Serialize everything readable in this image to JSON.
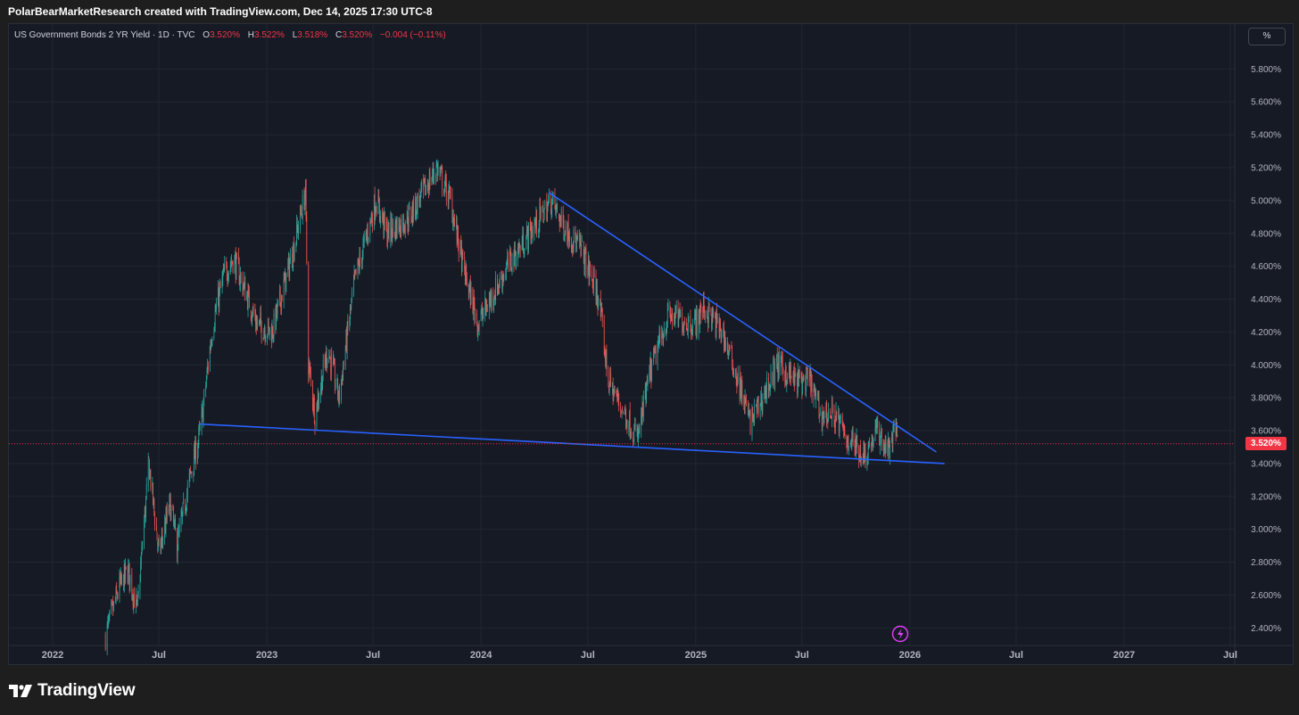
{
  "header": {
    "credit": "PolarBearMarketResearch created with TradingView.com, Dec 14, 2025 17:30 UTC-8"
  },
  "legend": {
    "symbol": "US Government Bonds 2 YR Yield · 1D · TVC",
    "open_label": "O",
    "open_value": "3.520%",
    "high_label": "H",
    "high_value": "3.522%",
    "low_label": "L",
    "low_value": "3.518%",
    "close_label": "C",
    "close_value": "3.520%",
    "change": "−0.004 (−0.11%)"
  },
  "controls": {
    "unit_button": "%",
    "flash_icon": "lightning-icon"
  },
  "price_axis": {
    "ticks": [
      "5.800%",
      "5.600%",
      "5.400%",
      "5.200%",
      "5.000%",
      "4.800%",
      "4.600%",
      "4.400%",
      "4.200%",
      "4.000%",
      "3.800%",
      "3.600%",
      "3.400%",
      "3.200%",
      "3.000%",
      "2.800%",
      "2.600%",
      "2.400%"
    ],
    "last_price": "3.520%"
  },
  "time_axis": {
    "ticks": [
      "2022",
      "Jul",
      "2023",
      "Jul",
      "2024",
      "Jul",
      "2025",
      "Jul",
      "2026",
      "Jul",
      "2027",
      "Jul"
    ]
  },
  "footer": {
    "brand": "TradingView"
  },
  "colors": {
    "background": "#161a25",
    "up": "#26a69a",
    "down": "#ef5350",
    "trendline": "#2962ff",
    "price_line": "#f23645"
  },
  "chart_data": {
    "type": "candlestick",
    "title": "US Government Bonds 2 YR Yield · 1D · TVC",
    "ylim": [
      2.3,
      5.95
    ],
    "y_unit": "%",
    "last": 3.52,
    "path_points": [
      {
        "date": "2022-04-01",
        "value": 2.35
      },
      {
        "date": "2022-04-25",
        "value": 2.65
      },
      {
        "date": "2022-05-10",
        "value": 2.75
      },
      {
        "date": "2022-05-25",
        "value": 2.5
      },
      {
        "date": "2022-06-14",
        "value": 3.4
      },
      {
        "date": "2022-07-01",
        "value": 2.85
      },
      {
        "date": "2022-07-20",
        "value": 3.15
      },
      {
        "date": "2022-08-01",
        "value": 2.9
      },
      {
        "date": "2022-08-25",
        "value": 3.35
      },
      {
        "date": "2022-09-10",
        "value": 3.6
      },
      {
        "date": "2022-10-01",
        "value": 4.25
      },
      {
        "date": "2022-10-20",
        "value": 4.55
      },
      {
        "date": "2022-11-05",
        "value": 4.65
      },
      {
        "date": "2022-11-25",
        "value": 4.45
      },
      {
        "date": "2022-12-15",
        "value": 4.25
      },
      {
        "date": "2023-01-10",
        "value": 4.2
      },
      {
        "date": "2023-02-15",
        "value": 4.7
      },
      {
        "date": "2023-03-08",
        "value": 5.05
      },
      {
        "date": "2023-03-13",
        "value": 4.0
      },
      {
        "date": "2023-03-24",
        "value": 3.7
      },
      {
        "date": "2023-04-15",
        "value": 4.1
      },
      {
        "date": "2023-05-04",
        "value": 3.8
      },
      {
        "date": "2023-05-30",
        "value": 4.5
      },
      {
        "date": "2023-07-06",
        "value": 5.0
      },
      {
        "date": "2023-07-25",
        "value": 4.8
      },
      {
        "date": "2023-09-01",
        "value": 4.9
      },
      {
        "date": "2023-10-18",
        "value": 5.2
      },
      {
        "date": "2023-11-10",
        "value": 5.0
      },
      {
        "date": "2023-12-01",
        "value": 4.6
      },
      {
        "date": "2023-12-27",
        "value": 4.25
      },
      {
        "date": "2024-02-15",
        "value": 4.6
      },
      {
        "date": "2024-04-30",
        "value": 5.0
      },
      {
        "date": "2024-05-20",
        "value": 4.85
      },
      {
        "date": "2024-06-20",
        "value": 4.7
      },
      {
        "date": "2024-07-20",
        "value": 4.4
      },
      {
        "date": "2024-08-05",
        "value": 3.9
      },
      {
        "date": "2024-09-24",
        "value": 3.55
      },
      {
        "date": "2024-10-15",
        "value": 3.95
      },
      {
        "date": "2024-11-15",
        "value": 4.3
      },
      {
        "date": "2024-12-31",
        "value": 4.25
      },
      {
        "date": "2025-01-14",
        "value": 4.35
      },
      {
        "date": "2025-02-15",
        "value": 4.2
      },
      {
        "date": "2025-03-10",
        "value": 3.95
      },
      {
        "date": "2025-04-04",
        "value": 3.65
      },
      {
        "date": "2025-04-25",
        "value": 3.8
      },
      {
        "date": "2025-05-20",
        "value": 4.0
      },
      {
        "date": "2025-06-20",
        "value": 3.9
      },
      {
        "date": "2025-07-15",
        "value": 3.9
      },
      {
        "date": "2025-08-01",
        "value": 3.7
      },
      {
        "date": "2025-08-25",
        "value": 3.7
      },
      {
        "date": "2025-09-15",
        "value": 3.55
      },
      {
        "date": "2025-09-20",
        "value": 3.55
      },
      {
        "date": "2025-10-16",
        "value": 3.45
      },
      {
        "date": "2025-11-05",
        "value": 3.6
      },
      {
        "date": "2025-11-25",
        "value": 3.48
      },
      {
        "date": "2025-12-09",
        "value": 3.62
      },
      {
        "date": "2025-12-12",
        "value": 3.52
      }
    ],
    "trendlines": [
      {
        "name": "upper",
        "from": {
          "date": "2024-04-25",
          "value": 5.05
        },
        "to": {
          "date": "2026-02-15",
          "value": 3.47
        }
      },
      {
        "name": "lower",
        "from": {
          "date": "2022-09-10",
          "value": 3.64
        },
        "to": {
          "date": "2026-03-01",
          "value": 3.4
        }
      }
    ]
  }
}
